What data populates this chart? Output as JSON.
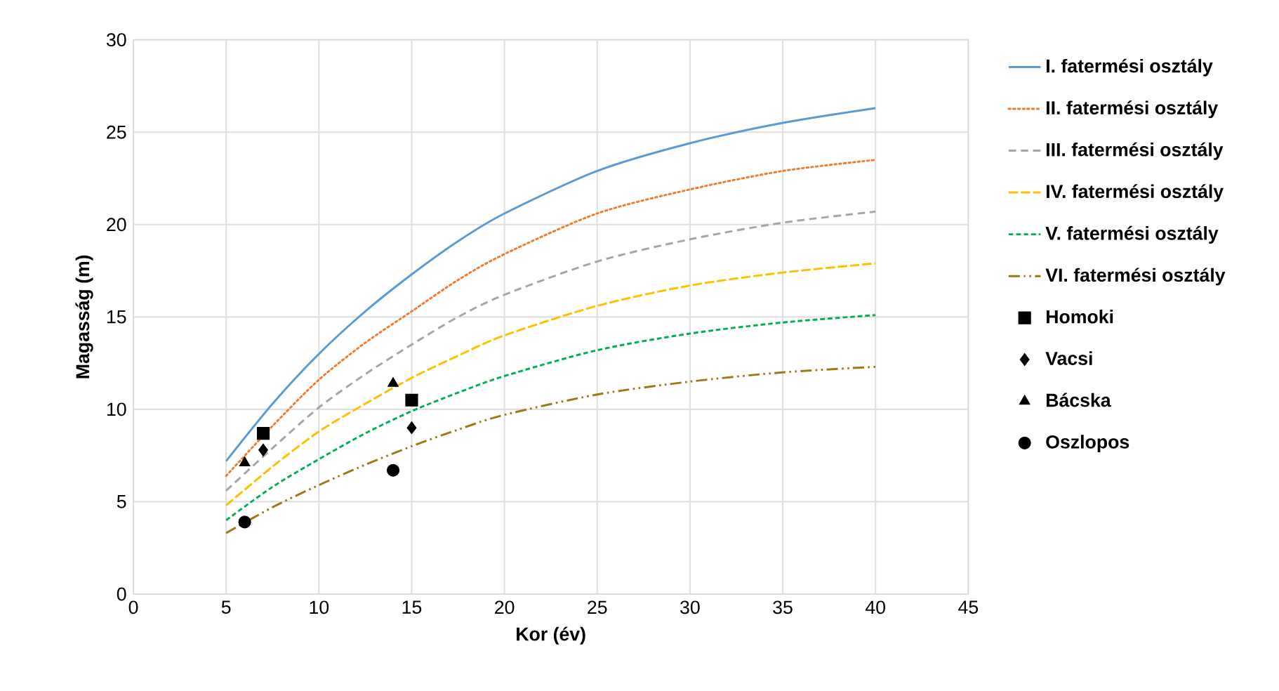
{
  "chart_data": {
    "type": "line",
    "xlabel": "Kor (év)",
    "ylabel": "Magasság (m)",
    "xlim": [
      0,
      45
    ],
    "ylim": [
      0,
      30
    ],
    "xticks": [
      0,
      5,
      10,
      15,
      20,
      25,
      30,
      35,
      40,
      45
    ],
    "yticks": [
      0,
      5,
      10,
      15,
      20,
      25,
      30
    ],
    "grid": true,
    "legend": "right",
    "marker": "none",
    "series": [
      {
        "name": "I. fatermési osztály",
        "color": "#5b9bd5",
        "line_style": "solid",
        "x": [
          5,
          7.5,
          10,
          12.5,
          15,
          17.5,
          20,
          25,
          30,
          35,
          40
        ],
        "values": [
          7.2,
          10.3,
          13.0,
          15.3,
          17.3,
          19.1,
          20.6,
          22.9,
          24.4,
          25.5,
          26.3
        ]
      },
      {
        "name": "II. fatermési osztály",
        "color": "#ed7d31",
        "line_style": "dotted",
        "x": [
          5,
          7.5,
          10,
          12.5,
          15,
          17.5,
          20,
          25,
          30,
          35,
          40
        ],
        "values": [
          6.4,
          9.1,
          11.6,
          13.6,
          15.3,
          17.0,
          18.4,
          20.6,
          21.9,
          22.9,
          23.5
        ]
      },
      {
        "name": "III. fatermési osztály",
        "color": "#a5a5a5",
        "line_style": "dashed",
        "x": [
          5,
          7.5,
          10,
          12.5,
          15,
          17.5,
          20,
          25,
          30,
          35,
          40
        ],
        "values": [
          5.6,
          7.9,
          10.1,
          11.9,
          13.5,
          15.0,
          16.2,
          18.0,
          19.2,
          20.1,
          20.7
        ]
      },
      {
        "name": "IV. fatermési osztály",
        "color": "#ffc000",
        "line_style": "dashed",
        "x": [
          5,
          7.5,
          10,
          12.5,
          15,
          17.5,
          20,
          25,
          30,
          35,
          40
        ],
        "values": [
          4.8,
          6.9,
          8.8,
          10.3,
          11.7,
          12.9,
          14.0,
          15.6,
          16.7,
          17.4,
          17.9
        ]
      },
      {
        "name": "V. fatermési osztály",
        "color": "#00b050",
        "line_style": "dashed",
        "x": [
          5,
          7.5,
          10,
          12.5,
          15,
          17.5,
          20,
          25,
          30,
          35,
          40
        ],
        "values": [
          4.0,
          5.8,
          7.3,
          8.7,
          9.9,
          10.9,
          11.8,
          13.2,
          14.1,
          14.7,
          15.1
        ]
      },
      {
        "name": "VI. fatermési osztály",
        "color": "#9c7a16",
        "line_style": "dashdot",
        "x": [
          5,
          7.5,
          10,
          12.5,
          15,
          17.5,
          20,
          25,
          30,
          35,
          40
        ],
        "values": [
          3.3,
          4.7,
          5.9,
          7.0,
          8.0,
          8.9,
          9.7,
          10.8,
          11.5,
          12.0,
          12.3
        ]
      },
      {
        "name": "Homoki",
        "type": "scatter",
        "marker": "square",
        "color": "#000000",
        "x": [
          7,
          15
        ],
        "values": [
          8.7,
          10.5
        ]
      },
      {
        "name": "Vacsi",
        "type": "scatter",
        "marker": "diamond",
        "color": "#000000",
        "x": [
          7,
          15
        ],
        "values": [
          7.8,
          9.0
        ]
      },
      {
        "name": "Bácska",
        "type": "scatter",
        "marker": "triangle",
        "color": "#000000",
        "x": [
          6,
          14
        ],
        "values": [
          7.1,
          11.4
        ]
      },
      {
        "name": "Oszlopos",
        "type": "scatter",
        "marker": "circle",
        "color": "#000000",
        "x": [
          6,
          14
        ],
        "values": [
          3.9,
          6.7
        ]
      }
    ]
  }
}
